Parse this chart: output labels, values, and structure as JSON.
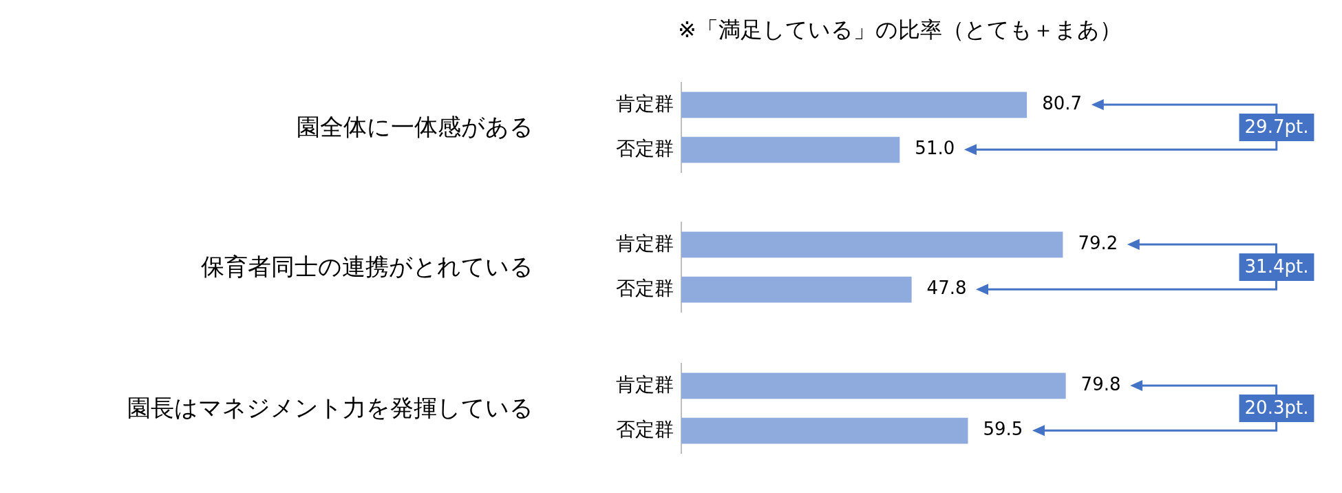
{
  "chart_data": [
    {
      "type": "bar",
      "orientation": "horizontal",
      "title": "※「満足している」の比率（とても＋まあ）",
      "ylabel": "園全体に一体感がある",
      "categories": [
        "肯定群",
        "否定群"
      ],
      "values": [
        80.7,
        51.0
      ],
      "value_labels": [
        "80.7",
        "51.0"
      ],
      "color": "#8faadc",
      "grid": false,
      "legend": false,
      "annotations": [
        "29.7pt."
      ]
    },
    {
      "type": "bar",
      "orientation": "horizontal",
      "ylabel": "保育者同士の連携がとれている",
      "categories": [
        "肯定群",
        "否定群"
      ],
      "values": [
        79.2,
        47.8
      ],
      "value_labels": [
        "79.2",
        "47.8"
      ],
      "color": "#8faadc",
      "grid": false,
      "legend": false,
      "annotations": [
        "31.4pt."
      ]
    },
    {
      "type": "bar",
      "orientation": "horizontal",
      "ylabel": "園長はマネジメント力を発揮している",
      "categories": [
        "肯定群",
        "否定群"
      ],
      "values": [
        79.8,
        59.5
      ],
      "value_labels": [
        "79.8",
        "59.5"
      ],
      "color": "#8faadc",
      "grid": false,
      "legend": false,
      "annotations": [
        "20.3pt."
      ]
    }
  ]
}
